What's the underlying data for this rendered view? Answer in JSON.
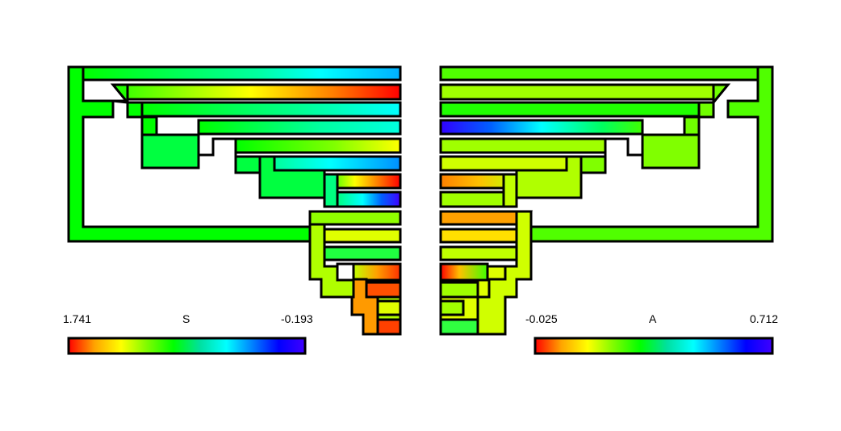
{
  "left_scale": {
    "min_label": "1.741",
    "title": "S",
    "max_label": "-0.193",
    "colors": [
      "#ff0000",
      "#ffa500",
      "#ffff00",
      "#7cfc00",
      "#00ff00",
      "#00e0a0",
      "#00ffff",
      "#0080ff",
      "#0000ff",
      "#4000ff"
    ]
  },
  "right_scale": {
    "min_label": "-0.025",
    "title": "A",
    "max_label": "0.712",
    "colors": [
      "#ff0000",
      "#ffa500",
      "#ffff00",
      "#7cfc00",
      "#00ff00",
      "#00e0a0",
      "#00ffff",
      "#0080ff",
      "#0000ff",
      "#4000ff"
    ]
  },
  "colors": {
    "outline": "#000000",
    "background": "#ffffff"
  }
}
